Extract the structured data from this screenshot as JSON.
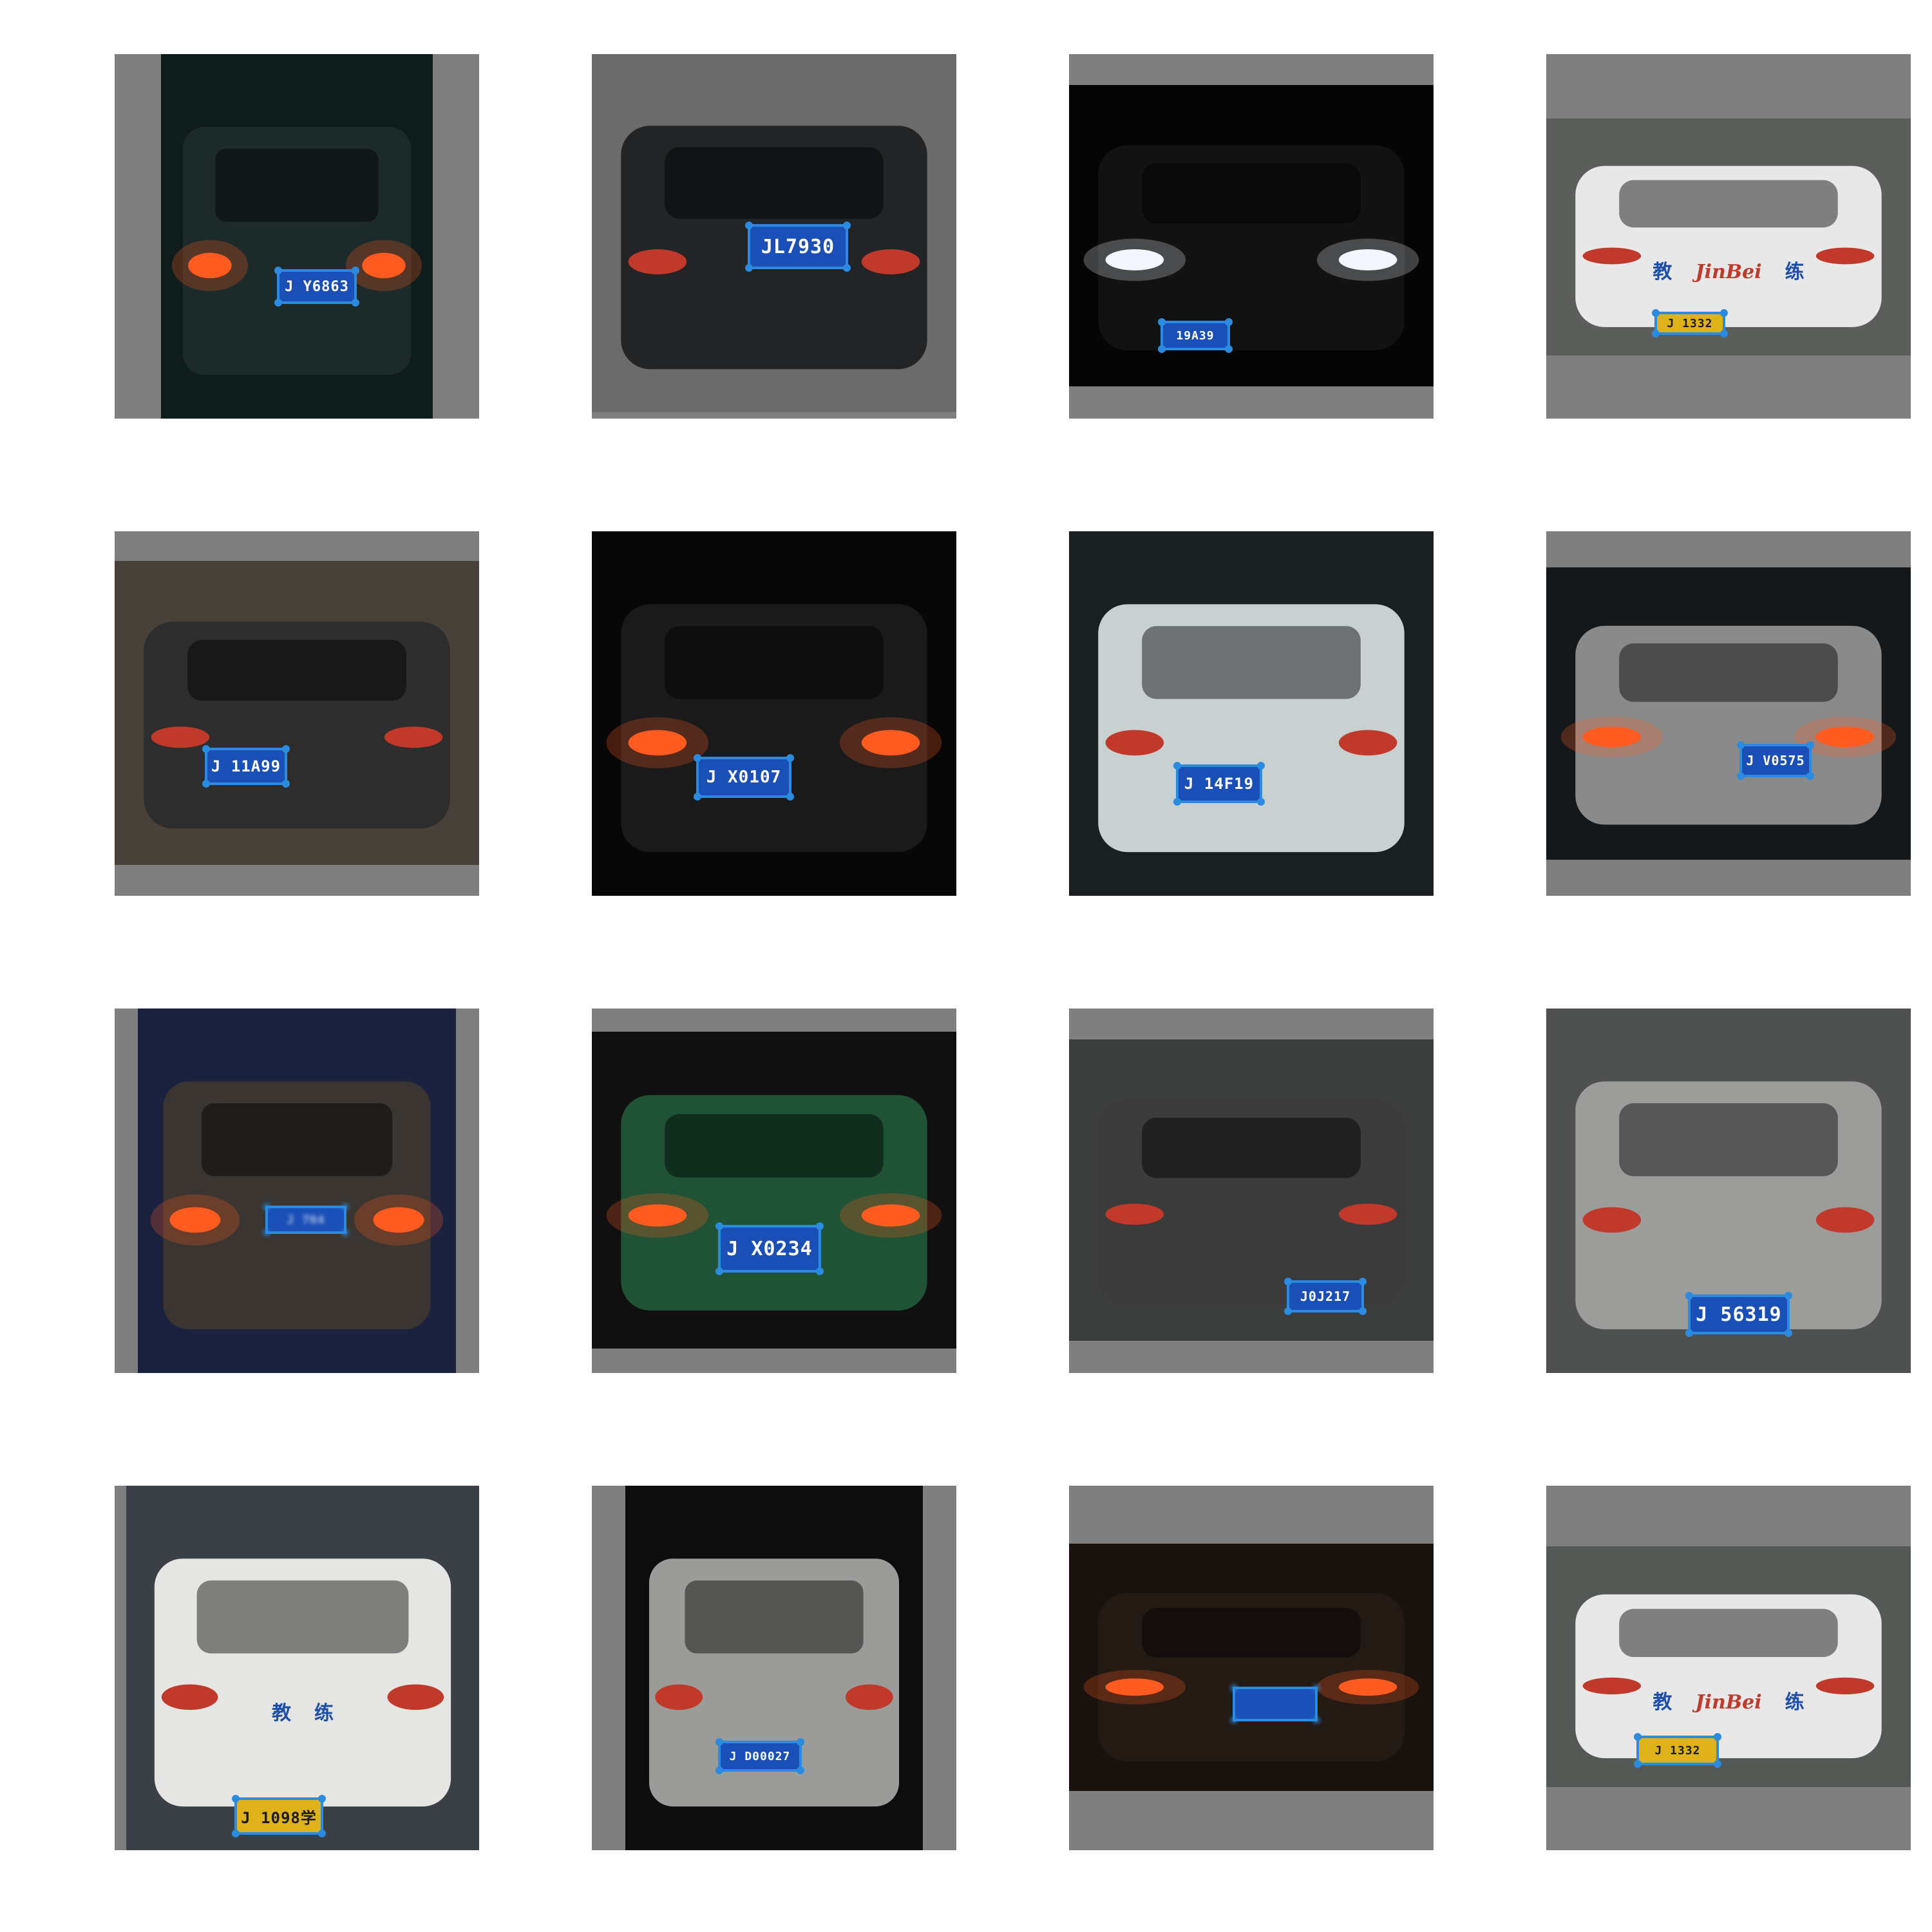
{
  "grid": {
    "rows": 4,
    "cols": 4,
    "tiles": [
      {
        "id": 1,
        "scene": "dark sedan rear, night",
        "plate_text": "J Y6863",
        "plate_color": "blue"
      },
      {
        "id": 2,
        "scene": "black sedan rear, day",
        "plate_text": "JL7930",
        "plate_color": "blue"
      },
      {
        "id": 3,
        "scene": "dark SUV front, headlights on",
        "plate_text": "19A39",
        "plate_color": "blue"
      },
      {
        "id": 4,
        "scene": "white pickup, JinBei training vehicle",
        "plate_text": "J 1332",
        "plate_color": "yellow",
        "vehicle_text": {
          "left": "教",
          "brand": "JinBei",
          "right": "练"
        }
      },
      {
        "id": 5,
        "scene": "dark Audi sedan rear",
        "plate_text": "J 11A99",
        "plate_color": "blue"
      },
      {
        "id": 6,
        "scene": "taxi rear at night, roof sign",
        "plate_text": "J X0107",
        "plate_color": "blue"
      },
      {
        "id": 7,
        "scene": "white BMW X6 rear",
        "plate_text": "J 14F19",
        "plate_color": "blue"
      },
      {
        "id": 8,
        "scene": "white hatchback rear, night",
        "plate_text": "J V0575",
        "plate_color": "blue"
      },
      {
        "id": 9,
        "scene": "grey SUV rear, blurry night",
        "plate_text": "J 7N4",
        "plate_color": "blue",
        "blurred": true
      },
      {
        "id": 10,
        "scene": "green taxi rear, red ad panel",
        "plate_text": "J X0234",
        "plate_color": "blue"
      },
      {
        "id": 11,
        "scene": "grey VW sedan rear",
        "plate_text": "J0J217",
        "plate_color": "blue"
      },
      {
        "id": 12,
        "scene": "silver VW sedan rear",
        "plate_text": "J 56319",
        "plate_color": "blue"
      },
      {
        "id": 13,
        "scene": "white pickup front, training car",
        "plate_text": "J 1098学",
        "plate_color": "yellow",
        "vehicle_text": {
          "left": "教",
          "right": "练"
        }
      },
      {
        "id": 14,
        "scene": "white SUV rear with spare tire",
        "plate_text": "J D00027",
        "plate_color": "blue"
      },
      {
        "id": 15,
        "scene": "very blurry taillights at night",
        "plate_text": "",
        "plate_color": "blue",
        "blurred": true
      },
      {
        "id": 16,
        "scene": "white pickup, JinBei training vehicle",
        "plate_text": "J 1332",
        "plate_color": "yellow",
        "vehicle_text": {
          "left": "教",
          "brand": "JinBei",
          "right": "练"
        }
      }
    ]
  }
}
